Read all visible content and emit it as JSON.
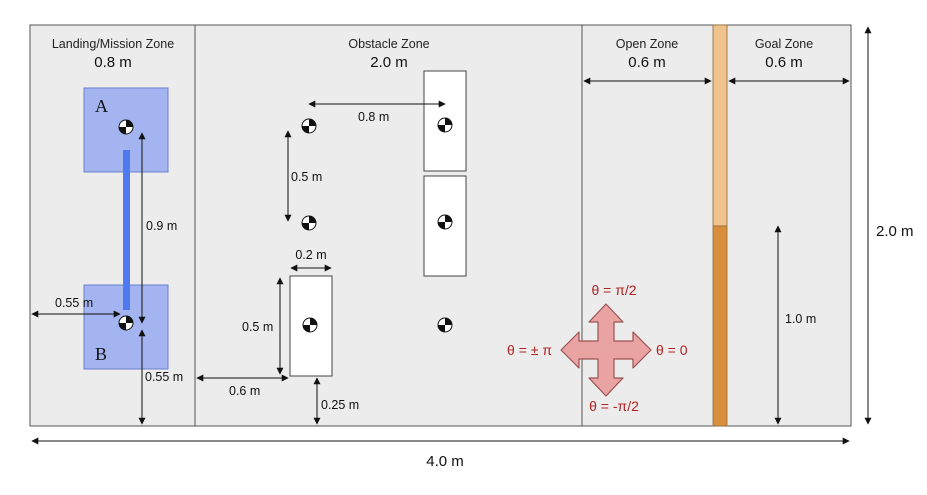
{
  "zones": {
    "landing": {
      "title": "Landing/Mission Zone",
      "width": "0.8 m"
    },
    "obstacle": {
      "title": "Obstacle Zone",
      "width": "2.0 m"
    },
    "open": {
      "title": "Open Zone",
      "width": "0.6 m"
    },
    "goal": {
      "title": "Goal Zone",
      "width": "0.6 m"
    }
  },
  "pads": {
    "a": "A",
    "b": "B"
  },
  "dimensions": {
    "total_width": "4.0 m",
    "total_height": "2.0 m",
    "pad_separation": "0.9 m",
    "pad_left_offset": "0.55 m",
    "pad_bottom_offset": "0.55 m",
    "marker_horizontal": "0.8 m",
    "marker_vertical": "0.5 m",
    "obstacle_width": "0.2 m",
    "obstacle_height": "0.5 m",
    "obstacle_left_offset": "0.6 m",
    "obstacle_bottom_offset": "0.25 m",
    "goal_height": "1.0 m"
  },
  "heading": {
    "up": "θ = π/2",
    "down": "θ = -π/2",
    "left": "θ = ± π",
    "right": "θ = 0"
  },
  "colors": {
    "arena_bg": "#ececec",
    "landing_pad": "#a4b4f0",
    "path_bar": "#4f79f0",
    "gate_light": "#f0c28c",
    "gate_dark": "#d98e3c",
    "arrow_fill": "#e9a3a3",
    "arrow_stroke": "#9c5252",
    "theta_text": "#b22222"
  }
}
